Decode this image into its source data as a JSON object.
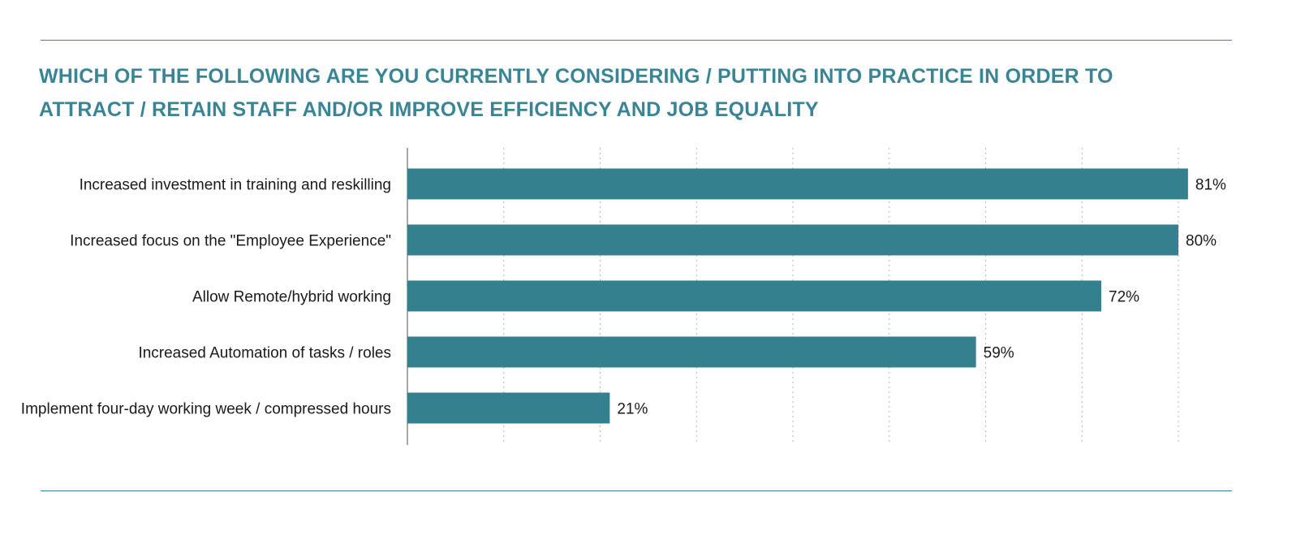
{
  "chart_data": {
    "type": "bar",
    "orientation": "horizontal",
    "title": "WHICH OF THE FOLLOWING ARE YOU CURRENTLY CONSIDERING / PUTTING INTO PRACTICE IN ORDER TO ATTRACT / RETAIN STAFF AND/OR IMPROVE EFFICIENCY AND JOB EQUALITY",
    "categories": [
      "Increased investment in training and reskilling",
      "Increased focus on the \"Employee Experience\"",
      "Allow Remote/hybrid working",
      "Increased Automation of tasks / roles",
      "Implement four-day working week / compressed hours"
    ],
    "values": [
      81,
      80,
      72,
      59,
      21
    ],
    "data_labels": [
      "81%",
      "80%",
      "72%",
      "59%",
      "21%"
    ],
    "xlim": [
      0,
      80
    ],
    "grid": true,
    "bar_color": "#35808f"
  }
}
